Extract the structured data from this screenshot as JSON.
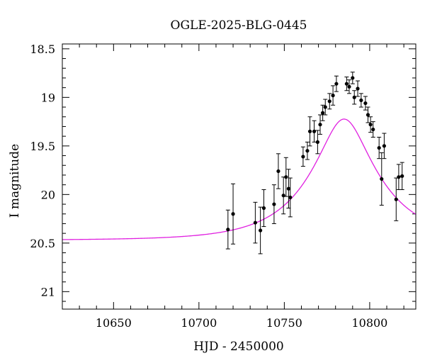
{
  "chart_data": {
    "type": "scatter",
    "title": "OGLE-2025-BLG-0445",
    "xlabel": "HJD - 2450000",
    "ylabel": "I magnitude",
    "xlim": [
      10620,
      10827
    ],
    "ylim": [
      21.18,
      18.45
    ],
    "y_inverted": true,
    "grid": false,
    "x_ticks": [
      10650,
      10700,
      10750,
      10800
    ],
    "x_tick_labels": [
      "10650",
      "10700",
      "10750",
      "10800"
    ],
    "y_ticks": [
      18.5,
      19,
      19.5,
      20,
      20.5,
      21
    ],
    "y_tick_labels": [
      "18.5",
      "19",
      "19.5",
      "20",
      "20.5",
      "21"
    ],
    "series": [
      {
        "name": "photometry",
        "kind": "points_with_errorbars",
        "color": "#000000",
        "points": [
          {
            "x": 10717.0,
            "y": 20.36,
            "err": 0.2
          },
          {
            "x": 10720.0,
            "y": 20.2,
            "err": 0.31
          },
          {
            "x": 10733.0,
            "y": 20.29,
            "err": 0.21
          },
          {
            "x": 10736.0,
            "y": 20.37,
            "err": 0.24
          },
          {
            "x": 10738.0,
            "y": 20.14,
            "err": 0.19
          },
          {
            "x": 10744.0,
            "y": 20.1,
            "err": 0.2
          },
          {
            "x": 10746.5,
            "y": 19.76,
            "err": 0.18
          },
          {
            "x": 10749.5,
            "y": 20.01,
            "err": 0.19
          },
          {
            "x": 10751.0,
            "y": 19.82,
            "err": 0.2
          },
          {
            "x": 10752.5,
            "y": 19.94,
            "err": 0.2
          },
          {
            "x": 10753.5,
            "y": 20.03,
            "err": 0.2
          },
          {
            "x": 10761.0,
            "y": 19.61,
            "err": 0.1
          },
          {
            "x": 10763.5,
            "y": 19.55,
            "err": 0.09
          },
          {
            "x": 10765.0,
            "y": 19.35,
            "err": 0.15
          },
          {
            "x": 10767.5,
            "y": 19.35,
            "err": 0.11
          },
          {
            "x": 10769.5,
            "y": 19.46,
            "err": 0.12
          },
          {
            "x": 10771.0,
            "y": 19.28,
            "err": 0.1
          },
          {
            "x": 10772.5,
            "y": 19.16,
            "err": 0.08
          },
          {
            "x": 10774.0,
            "y": 19.1,
            "err": 0.08
          },
          {
            "x": 10776.5,
            "y": 19.04,
            "err": 0.08
          },
          {
            "x": 10778.5,
            "y": 18.98,
            "err": 0.1
          },
          {
            "x": 10780.5,
            "y": 18.86,
            "err": 0.08
          },
          {
            "x": 10786.5,
            "y": 18.86,
            "err": 0.07
          },
          {
            "x": 10788.0,
            "y": 18.89,
            "err": 0.07
          },
          {
            "x": 10790.0,
            "y": 18.8,
            "err": 0.06
          },
          {
            "x": 10791.0,
            "y": 19.0,
            "err": 0.07
          },
          {
            "x": 10793.0,
            "y": 18.91,
            "err": 0.08
          },
          {
            "x": 10795.0,
            "y": 19.03,
            "err": 0.07
          },
          {
            "x": 10797.5,
            "y": 19.06,
            "err": 0.07
          },
          {
            "x": 10799.0,
            "y": 19.18,
            "err": 0.08
          },
          {
            "x": 10800.5,
            "y": 19.28,
            "err": 0.08
          },
          {
            "x": 10802.0,
            "y": 19.33,
            "err": 0.08
          },
          {
            "x": 10805.5,
            "y": 19.52,
            "err": 0.11
          },
          {
            "x": 10807.0,
            "y": 19.84,
            "err": 0.27
          },
          {
            "x": 10808.5,
            "y": 19.5,
            "err": 0.13
          },
          {
            "x": 10815.5,
            "y": 20.05,
            "err": 0.22
          },
          {
            "x": 10817.0,
            "y": 19.82,
            "err": 0.13
          },
          {
            "x": 10819.0,
            "y": 19.81,
            "err": 0.14
          }
        ]
      },
      {
        "name": "model",
        "kind": "line",
        "color": "#e020e0",
        "model": {
          "type": "point-lens",
          "t0": 10785,
          "u0": 0.33,
          "tE": 40,
          "I_base": 20.47
        }
      }
    ]
  }
}
